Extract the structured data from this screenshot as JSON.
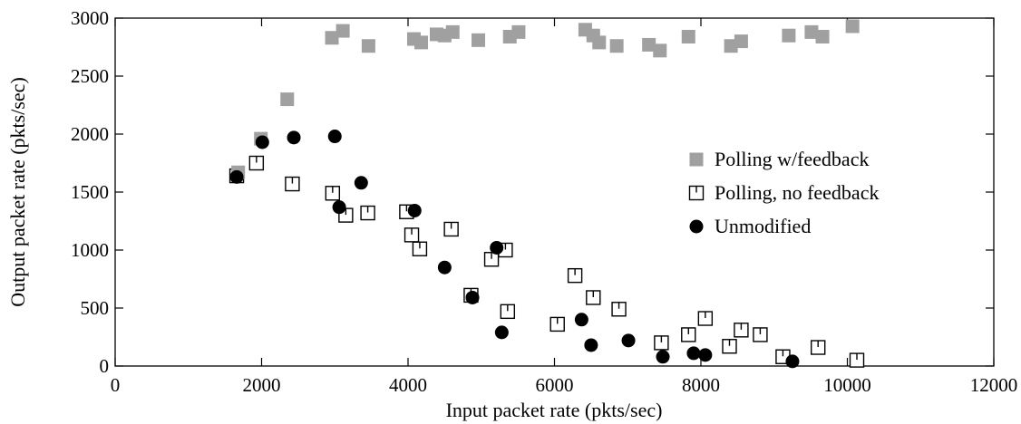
{
  "chart_data": {
    "type": "scatter",
    "title": "",
    "xlabel": "Input packet rate (pkts/sec)",
    "ylabel": "Output packet rate (pkts/sec)",
    "xlim": [
      0,
      12000
    ],
    "ylim": [
      0,
      3000
    ],
    "xticks": [
      0,
      2000,
      4000,
      6000,
      8000,
      10000,
      12000
    ],
    "yticks": [
      0,
      500,
      1000,
      1500,
      2000,
      2500,
      3000
    ],
    "grid": false,
    "legend_position": "right",
    "series": [
      {
        "name": "Polling w/feedback",
        "marker": "filled-square",
        "color": "#a0a0a0",
        "points": [
          [
            1680,
            1670
          ],
          [
            1990,
            1960
          ],
          [
            2350,
            2300
          ],
          [
            2960,
            2830
          ],
          [
            3110,
            2890
          ],
          [
            3460,
            2760
          ],
          [
            4080,
            2820
          ],
          [
            4180,
            2790
          ],
          [
            4390,
            2860
          ],
          [
            4500,
            2850
          ],
          [
            4610,
            2880
          ],
          [
            4960,
            2810
          ],
          [
            5390,
            2840
          ],
          [
            5510,
            2880
          ],
          [
            6420,
            2900
          ],
          [
            6530,
            2850
          ],
          [
            6610,
            2790
          ],
          [
            6850,
            2760
          ],
          [
            7290,
            2770
          ],
          [
            7440,
            2720
          ],
          [
            7830,
            2840
          ],
          [
            8410,
            2760
          ],
          [
            8550,
            2800
          ],
          [
            9200,
            2850
          ],
          [
            9510,
            2880
          ],
          [
            9660,
            2840
          ],
          [
            10070,
            2930
          ]
        ]
      },
      {
        "name": "Polling, no feedback",
        "marker": "open-square",
        "color": "#000000",
        "points": [
          [
            1660,
            1640
          ],
          [
            1930,
            1750
          ],
          [
            2420,
            1570
          ],
          [
            2970,
            1490
          ],
          [
            3150,
            1300
          ],
          [
            3450,
            1320
          ],
          [
            3980,
            1330
          ],
          [
            4050,
            1130
          ],
          [
            4160,
            1010
          ],
          [
            4590,
            1180
          ],
          [
            4860,
            610
          ],
          [
            5140,
            920
          ],
          [
            5330,
            1000
          ],
          [
            5360,
            470
          ],
          [
            6040,
            360
          ],
          [
            6280,
            780
          ],
          [
            6530,
            590
          ],
          [
            6880,
            490
          ],
          [
            7460,
            200
          ],
          [
            7830,
            270
          ],
          [
            8060,
            410
          ],
          [
            8390,
            170
          ],
          [
            8550,
            310
          ],
          [
            8810,
            270
          ],
          [
            9120,
            80
          ],
          [
            9600,
            160
          ],
          [
            10130,
            50
          ]
        ]
      },
      {
        "name": "Unmodified",
        "marker": "filled-circle",
        "color": "#000000",
        "points": [
          [
            1660,
            1630
          ],
          [
            2010,
            1930
          ],
          [
            2440,
            1970
          ],
          [
            3000,
            1980
          ],
          [
            3060,
            1370
          ],
          [
            3360,
            1580
          ],
          [
            4090,
            1340
          ],
          [
            4500,
            850
          ],
          [
            4880,
            590
          ],
          [
            5210,
            1020
          ],
          [
            5280,
            290
          ],
          [
            6370,
            400
          ],
          [
            6500,
            180
          ],
          [
            7010,
            220
          ],
          [
            7480,
            80
          ],
          [
            7900,
            110
          ],
          [
            8060,
            95
          ],
          [
            9250,
            40
          ]
        ]
      }
    ]
  }
}
